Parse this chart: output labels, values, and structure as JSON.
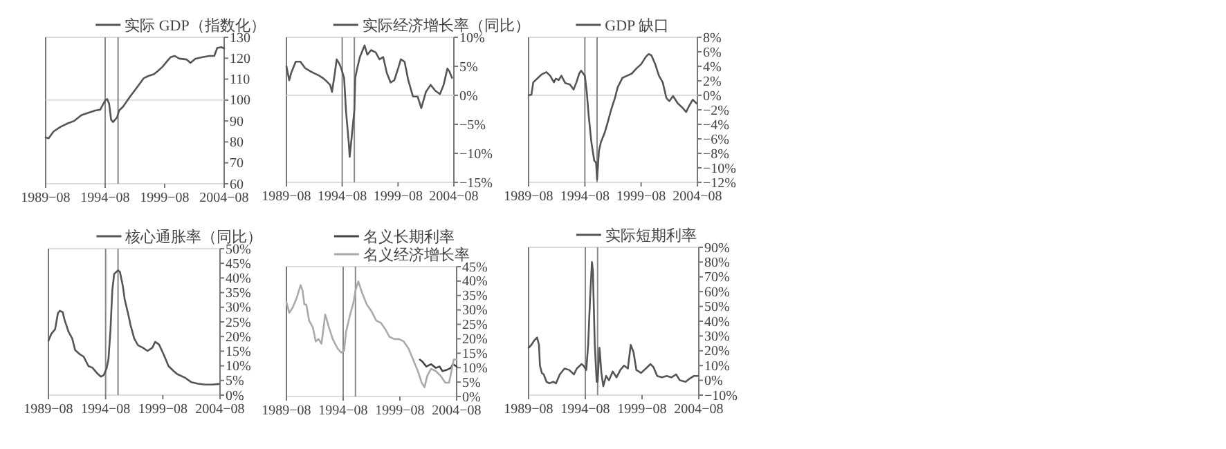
{
  "chart_data": [
    {
      "type": "line",
      "legend": "top",
      "xlim": [
        "1989-08",
        "2004-08"
      ],
      "xticks": [
        {
          "value": "1989-08",
          "label": "1989−08"
        },
        {
          "value": "1994-08",
          "label": "1994−08"
        },
        {
          "value": "1999-08",
          "label": "1999−08"
        },
        {
          "value": "2004-08",
          "label": "2004−08"
        }
      ],
      "ylim": [
        60,
        130
      ],
      "yticks": [
        60,
        70,
        80,
        90,
        100,
        110,
        120,
        130
      ],
      "ref_lines": [
        {
          "axis": "y",
          "value": 100,
          "color": "#dddddd"
        },
        {
          "axis": "x",
          "value": "1994-08",
          "color": "#888888"
        },
        {
          "axis": "x",
          "value": "1995-09",
          "color": "#888888"
        }
      ],
      "series": [
        {
          "name": "实际 GDP（指数化）",
          "color": "#555555",
          "x": [
            "1989-08",
            "1989-11",
            "1990-04",
            "1990-11",
            "1991-06",
            "1992-01",
            "1992-08",
            "1993-03",
            "1993-10",
            "1994-03",
            "1994-05",
            "1994-08",
            "1994-10",
            "1994-12",
            "1995-02",
            "1995-04",
            "1995-08",
            "1995-10",
            "1996-02",
            "1996-09",
            "1997-04",
            "1997-11",
            "1998-04",
            "1998-09",
            "1999-01",
            "1999-06",
            "1999-11",
            "2000-02",
            "2000-06",
            "2000-11",
            "2001-06",
            "2001-10",
            "2002-03",
            "2002-10",
            "2003-05",
            "2003-10",
            "2004-01",
            "2004-05",
            "2004-08"
          ],
          "values": [
            82.1,
            81.7,
            85.0,
            87.2,
            88.8,
            90.1,
            92.8,
            93.9,
            95.0,
            95.4,
            97.2,
            99.8,
            100.5,
            98.2,
            90.6,
            89.5,
            91.7,
            95.0,
            96.8,
            101.6,
            106.0,
            110.5,
            111.6,
            112.3,
            113.8,
            116.0,
            118.9,
            120.5,
            121.1,
            119.8,
            119.4,
            117.8,
            119.8,
            120.5,
            121.1,
            121.1,
            124.9,
            125.3,
            124.7
          ]
        }
      ]
    },
    {
      "type": "line",
      "legend": "top",
      "xlim": [
        "1989-08",
        "2004-08"
      ],
      "xticks": [
        {
          "value": "1989-08",
          "label": "1989−08"
        },
        {
          "value": "1994-08",
          "label": "1994−08"
        },
        {
          "value": "1999-08",
          "label": "1999−08"
        },
        {
          "value": "2004-08",
          "label": "2004−08"
        }
      ],
      "ylim": [
        -15,
        10
      ],
      "yticks": [
        {
          "value": -15,
          "label": "−15%"
        },
        {
          "value": -10,
          "label": "−10%"
        },
        {
          "value": -5,
          "label": "−5%"
        },
        {
          "value": 0,
          "label": "0%"
        },
        {
          "value": 5,
          "label": "5%"
        },
        {
          "value": 10,
          "label": "10%"
        }
      ],
      "ref_lines": [
        {
          "axis": "y",
          "value": 0,
          "color": "#dddddd"
        },
        {
          "axis": "x",
          "value": "1994-08",
          "color": "#888888"
        },
        {
          "axis": "x",
          "value": "1995-09",
          "color": "#888888"
        }
      ],
      "series": [
        {
          "name": "实际经济增长率（同比）",
          "color": "#555555",
          "x": [
            "1989-08",
            "1989-11",
            "1990-01",
            "1990-06",
            "1990-11",
            "1991-04",
            "1991-09",
            "1992-02",
            "1992-07",
            "1992-11",
            "1993-02",
            "1993-07",
            "1993-09",
            "1993-12",
            "1994-02",
            "1994-05",
            "1994-07",
            "1994-10",
            "1994-12",
            "1995-03",
            "1995-04",
            "1995-06",
            "1995-08",
            "1995-09",
            "1995-10",
            "1995-12",
            "1996-03",
            "1996-08",
            "1996-11",
            "1997-03",
            "1997-08",
            "1997-12",
            "1998-04",
            "1998-08",
            "1998-12",
            "1999-04",
            "1999-08",
            "1999-11",
            "2000-03",
            "2000-07",
            "2000-12",
            "2001-05",
            "2001-09",
            "2002-02",
            "2002-07",
            "2002-12",
            "2003-05",
            "2003-09",
            "2004-01",
            "2004-03",
            "2004-06"
          ],
          "values": [
            5.0,
            2.6,
            3.8,
            5.8,
            5.8,
            4.7,
            4.2,
            3.8,
            3.4,
            3.0,
            2.6,
            1.8,
            0.6,
            3.8,
            6.2,
            5.4,
            4.6,
            3.0,
            -2.6,
            -8.2,
            -10.6,
            -7.4,
            -4.2,
            -2.6,
            3.0,
            4.6,
            6.6,
            8.6,
            7.0,
            7.8,
            7.4,
            6.2,
            6.6,
            3.8,
            2.2,
            2.6,
            4.6,
            6.2,
            5.8,
            2.6,
            -0.2,
            -0.2,
            -2.2,
            0.6,
            1.8,
            0.8,
            0.2,
            1.8,
            4.6,
            4.2,
            3.0
          ]
        }
      ]
    },
    {
      "type": "line",
      "legend": "top",
      "xlim": [
        "1989-08",
        "2004-08"
      ],
      "xticks": [
        {
          "value": "1989-08",
          "label": "1989−08"
        },
        {
          "value": "1994-08",
          "label": "1994−08"
        },
        {
          "value": "1999-08",
          "label": "1999−08"
        },
        {
          "value": "2004-08",
          "label": "2004−08"
        }
      ],
      "ylim": [
        -12,
        8
      ],
      "yticks": [
        {
          "value": -12,
          "label": "−12%"
        },
        {
          "value": -10,
          "label": "−10%"
        },
        {
          "value": -8,
          "label": "−8%"
        },
        {
          "value": -6,
          "label": "−6%"
        },
        {
          "value": -4,
          "label": "−4%"
        },
        {
          "value": -2,
          "label": "−2%"
        },
        {
          "value": 0,
          "label": "0%"
        },
        {
          "value": 2,
          "label": "2%"
        },
        {
          "value": 4,
          "label": "4%"
        },
        {
          "value": 6,
          "label": "6%"
        },
        {
          "value": 8,
          "label": "8%"
        }
      ],
      "ref_lines": [
        {
          "axis": "y",
          "value": 0,
          "color": "#dddddd"
        },
        {
          "axis": "x",
          "value": "1994-08",
          "color": "#888888"
        },
        {
          "axis": "x",
          "value": "1995-09",
          "color": "#888888"
        }
      ],
      "series": [
        {
          "name": "GDP 缺口",
          "color": "#555555",
          "x": [
            "1989-08",
            "1989-11",
            "1990-01",
            "1990-06",
            "1990-10",
            "1991-03",
            "1991-07",
            "1991-11",
            "1992-01",
            "1992-04",
            "1992-07",
            "1992-11",
            "1993-04",
            "1993-08",
            "1993-11",
            "1994-02",
            "1994-04",
            "1994-08",
            "1994-10",
            "1994-12",
            "1995-03",
            "1995-06",
            "1995-08",
            "1995-09",
            "1995-11",
            "1996-01",
            "1996-05",
            "1996-08",
            "1996-12",
            "1997-04",
            "1997-07",
            "1997-12",
            "1998-05",
            "1998-10",
            "1999-03",
            "1999-08",
            "2000-01",
            "2000-04",
            "2000-07",
            "2000-11",
            "2001-03",
            "2001-07",
            "2001-11",
            "2002-02",
            "2002-06",
            "2002-11",
            "2003-04",
            "2003-08",
            "2003-11",
            "2004-03",
            "2004-07"
          ],
          "values": [
            0.0,
            0.1,
            1.8,
            2.4,
            2.9,
            3.2,
            2.7,
            1.8,
            2.3,
            2.1,
            2.7,
            1.7,
            1.5,
            0.8,
            1.8,
            3.0,
            3.4,
            2.7,
            0.5,
            -2.7,
            -6.5,
            -9.0,
            -9.3,
            -11.6,
            -7.7,
            -6.5,
            -5.2,
            -3.9,
            -2.0,
            -0.4,
            1.1,
            2.4,
            2.7,
            3.0,
            3.7,
            4.3,
            5.3,
            5.7,
            5.5,
            4.3,
            2.7,
            1.8,
            -0.4,
            -0.8,
            -0.1,
            -1.1,
            -1.7,
            -2.3,
            -1.5,
            -0.6,
            -1.1
          ]
        }
      ]
    },
    {
      "type": "line",
      "legend": "top",
      "xlim": [
        "1989-08",
        "2004-08"
      ],
      "xticks": [
        {
          "value": "1989-08",
          "label": "1989−08"
        },
        {
          "value": "1994-08",
          "label": "1994−08"
        },
        {
          "value": "1999-08",
          "label": "1999−08"
        },
        {
          "value": "2004-08",
          "label": "2004−08"
        }
      ],
      "ylim": [
        0,
        50
      ],
      "yticks": [
        {
          "value": 0,
          "label": "0%"
        },
        {
          "value": 5,
          "label": "5%"
        },
        {
          "value": 10,
          "label": "10%"
        },
        {
          "value": 15,
          "label": "15%"
        },
        {
          "value": 20,
          "label": "20%"
        },
        {
          "value": 25,
          "label": "25%"
        },
        {
          "value": 30,
          "label": "30%"
        },
        {
          "value": 35,
          "label": "35%"
        },
        {
          "value": 40,
          "label": "40%"
        },
        {
          "value": 45,
          "label": "45%"
        },
        {
          "value": 50,
          "label": "50%"
        }
      ],
      "ref_lines": [
        {
          "axis": "x",
          "value": "1994-08",
          "color": "#888888"
        },
        {
          "axis": "x",
          "value": "1995-09",
          "color": "#888888"
        }
      ],
      "series": [
        {
          "name": "核心通胀率（同比）",
          "color": "#555555",
          "x": [
            "1989-08",
            "1989-11",
            "1990-03",
            "1990-06",
            "1990-08",
            "1990-11",
            "1991-01",
            "1991-05",
            "1991-09",
            "1991-12",
            "1992-04",
            "1992-09",
            "1993-02",
            "1993-06",
            "1993-11",
            "1994-03",
            "1994-06",
            "1994-09",
            "1994-11",
            "1995-01",
            "1995-03",
            "1995-05",
            "1995-09",
            "1995-11",
            "1996-02",
            "1996-04",
            "1996-08",
            "1996-10",
            "1997-02",
            "1997-06",
            "1997-11",
            "1998-04",
            "1998-09",
            "1998-12",
            "1999-04",
            "1999-09",
            "2000-02",
            "2000-07",
            "2000-11",
            "2001-07",
            "2002-02",
            "2002-09",
            "2003-04",
            "2003-12",
            "2004-07"
          ],
          "values": [
            18.6,
            20.9,
            22.5,
            28.0,
            28.8,
            28.3,
            25.6,
            21.7,
            19.3,
            15.4,
            14.2,
            13.1,
            9.9,
            9.4,
            7.5,
            6.3,
            6.8,
            9.1,
            12.3,
            21.7,
            35.8,
            41.4,
            42.6,
            42.1,
            37.4,
            32.7,
            27.2,
            24.1,
            19.3,
            17.0,
            16.2,
            15.1,
            16.2,
            18.2,
            17.3,
            13.8,
            9.9,
            8.3,
            7.2,
            6.0,
            4.4,
            3.9,
            3.6,
            3.6,
            3.8
          ]
        }
      ]
    },
    {
      "type": "line",
      "legend": "top",
      "xlim": [
        "1989-08",
        "2004-08"
      ],
      "xticks": [
        {
          "value": "1989-08",
          "label": "1989−08"
        },
        {
          "value": "1994-08",
          "label": "1994−08"
        },
        {
          "value": "1999-08",
          "label": "1999−08"
        },
        {
          "value": "2004-08",
          "label": "2004−08"
        }
      ],
      "ylim": [
        0,
        45
      ],
      "yticks": [
        {
          "value": 0,
          "label": "0%"
        },
        {
          "value": 5,
          "label": "5%"
        },
        {
          "value": 10,
          "label": "10%"
        },
        {
          "value": 15,
          "label": "15%"
        },
        {
          "value": 20,
          "label": "20%"
        },
        {
          "value": 25,
          "label": "25%"
        },
        {
          "value": 30,
          "label": "30%"
        },
        {
          "value": 35,
          "label": "35%"
        },
        {
          "value": 40,
          "label": "40%"
        },
        {
          "value": 45,
          "label": "45%"
        }
      ],
      "ref_lines": [
        {
          "axis": "x",
          "value": "1994-08",
          "color": "#888888"
        },
        {
          "axis": "x",
          "value": "1995-09",
          "color": "#888888"
        }
      ],
      "series": [
        {
          "name": "名义长期利率",
          "color": "#444444",
          "x": [
            "2001-05",
            "2001-08",
            "2001-12",
            "2002-05",
            "2002-10",
            "2003-02",
            "2003-05",
            "2003-10",
            "2004-02",
            "2004-04",
            "2004-08"
          ],
          "values": [
            12.8,
            12.0,
            10.4,
            11.2,
            9.9,
            10.4,
            8.8,
            9.3,
            9.9,
            11.2,
            10.4
          ]
        },
        {
          "name": "名义经济增长率",
          "color": "#aaaaaa",
          "x": [
            "1989-08",
            "1989-11",
            "1990-03",
            "1990-07",
            "1990-11",
            "1991-01",
            "1991-03",
            "1991-05",
            "1991-08",
            "1991-12",
            "1992-03",
            "1992-06",
            "1992-09",
            "1992-11",
            "1993-01",
            "1993-05",
            "1993-09",
            "1994-02",
            "1994-06",
            "1994-09",
            "1994-11",
            "1995-03",
            "1995-07",
            "1995-09",
            "1995-12",
            "1996-04",
            "1996-09",
            "1997-02",
            "1997-07",
            "1997-12",
            "1998-05",
            "1998-09",
            "1999-02",
            "1999-07",
            "1999-12",
            "2000-05",
            "2000-10",
            "2001-03",
            "2001-07",
            "2001-10",
            "2002-01",
            "2002-05",
            "2002-10",
            "2003-03",
            "2003-08",
            "2003-12",
            "2004-03",
            "2004-05",
            "2004-08"
          ],
          "values": [
            32.7,
            29.0,
            31.1,
            34.3,
            38.6,
            36.7,
            31.9,
            31.9,
            26.3,
            23.9,
            19.1,
            19.9,
            18.3,
            23.1,
            28.4,
            23.9,
            19.9,
            16.7,
            15.2,
            15.9,
            22.3,
            27.9,
            32.7,
            36.7,
            39.9,
            35.9,
            31.9,
            29.5,
            26.3,
            25.5,
            23.1,
            20.7,
            19.9,
            19.9,
            19.1,
            16.7,
            12.8,
            8.8,
            4.8,
            3.2,
            7.2,
            9.6,
            8.8,
            7.2,
            4.8,
            4.8,
            9.6,
            12.8,
            12.8
          ]
        }
      ]
    },
    {
      "type": "line",
      "legend": "top",
      "xlim": [
        "1989-08",
        "2004-08"
      ],
      "xticks": [
        {
          "value": "1989-08",
          "label": "1989−08"
        },
        {
          "value": "1994-08",
          "label": "1994−08"
        },
        {
          "value": "1999-08",
          "label": "1999−08"
        },
        {
          "value": "2004-08",
          "label": "2004−08"
        }
      ],
      "ylim": [
        -10,
        90
      ],
      "yticks": [
        {
          "value": -10,
          "label": "−10%"
        },
        {
          "value": 0,
          "label": "0%"
        },
        {
          "value": 10,
          "label": "10%"
        },
        {
          "value": 20,
          "label": "20%"
        },
        {
          "value": 30,
          "label": "30%"
        },
        {
          "value": 40,
          "label": "40%"
        },
        {
          "value": 50,
          "label": "50%"
        },
        {
          "value": 60,
          "label": "60%"
        },
        {
          "value": 70,
          "label": "70%"
        },
        {
          "value": 80,
          "label": "80%"
        },
        {
          "value": 90,
          "label": "90%"
        }
      ],
      "ref_lines": [
        {
          "axis": "x",
          "value": "1994-08",
          "color": "#888888"
        },
        {
          "axis": "x",
          "value": "1995-09",
          "color": "#888888"
        }
      ],
      "series": [
        {
          "name": "实际短期利率",
          "color": "#555555",
          "x": [
            "1989-08",
            "1989-11",
            "1990-02",
            "1990-05",
            "1990-07",
            "1990-08",
            "1990-10",
            "1990-12",
            "1991-03",
            "1991-06",
            "1991-10",
            "1992-01",
            "1992-05",
            "1992-10",
            "1993-03",
            "1993-08",
            "1993-11",
            "1994-04",
            "1994-06",
            "1994-09",
            "1994-11",
            "1995-01",
            "1995-03",
            "1995-04",
            "1995-06",
            "1995-08",
            "1995-09",
            "1995-11",
            "1996-01",
            "1996-03",
            "1996-06",
            "1996-09",
            "1997-01",
            "1997-05",
            "1997-09",
            "1998-01",
            "1998-05",
            "1998-08",
            "1998-11",
            "1999-02",
            "1999-07",
            "1999-12",
            "2000-05",
            "2000-08",
            "2000-12",
            "2001-05",
            "2001-10",
            "2002-03",
            "2002-08",
            "2002-12",
            "2003-06",
            "2003-10",
            "2004-03",
            "2004-07"
          ],
          "values": [
            22,
            24,
            27,
            29,
            24,
            10,
            5,
            4,
            -1,
            -2,
            -1,
            -2,
            4,
            8,
            7,
            4,
            8,
            11,
            10,
            7,
            24,
            55,
            80,
            74,
            24,
            -1,
            -1,
            22,
            5,
            -4,
            3,
            0,
            6,
            2,
            7,
            10,
            8,
            24,
            19,
            7,
            5,
            8,
            11,
            9,
            3,
            2,
            3,
            2,
            4,
            0,
            -1,
            1,
            3,
            3
          ]
        }
      ]
    }
  ]
}
